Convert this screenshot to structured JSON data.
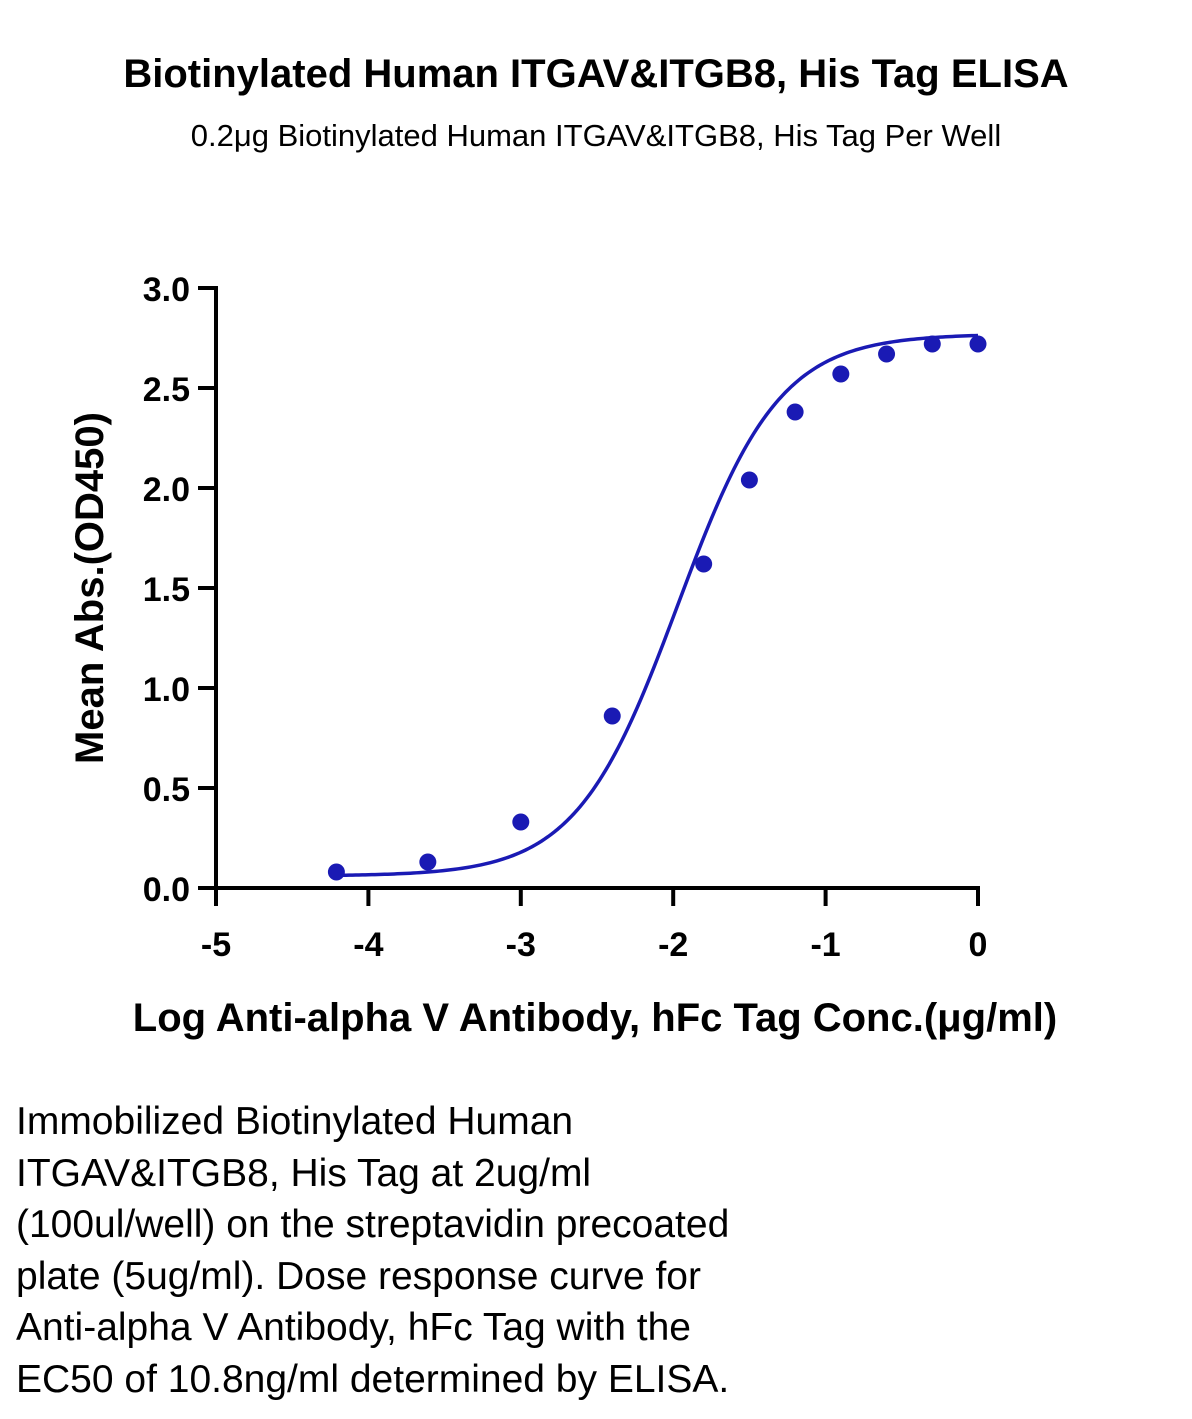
{
  "header": {
    "title": "Biotinylated Human ITGAV&ITGB8, His Tag ELISA",
    "subtitle": "0.2μg Biotinylated Human ITGAV&ITGB8, His Tag Per Well"
  },
  "chart_data": {
    "type": "scatter",
    "title": "Biotinylated Human ITGAV&ITGB8, His Tag ELISA",
    "subtitle": "0.2μg Biotinylated Human ITGAV&ITGB8, His Tag Per Well",
    "xlabel": "Log Anti-alpha V Antibody, hFc Tag Conc.(μg/ml)",
    "ylabel": "Mean Abs.(OD450)",
    "xlim": [
      -5,
      0
    ],
    "ylim": [
      0,
      3.0
    ],
    "x_ticks": [
      "-5",
      "-4",
      "-3",
      "-2",
      "-1",
      "0"
    ],
    "y_ticks": [
      "0.0",
      "0.5",
      "1.0",
      "1.5",
      "2.0",
      "2.5",
      "3.0"
    ],
    "grid": false,
    "legend": "none",
    "color": "#1a1ab4",
    "series": [
      {
        "x": [
          -4.21,
          -3.61,
          -3.0,
          -2.4,
          -1.8,
          -1.5,
          -1.2,
          -0.9,
          -0.6,
          -0.3,
          0.0
        ],
        "y": [
          0.08,
          0.13,
          0.33,
          0.86,
          1.62,
          2.04,
          2.38,
          2.57,
          2.67,
          2.72,
          2.72
        ]
      }
    ],
    "fit": {
      "type": "4PL sigmoid",
      "bottom": 0.06,
      "top": 2.77,
      "log_ec50": -1.97,
      "hill": 1.3
    }
  },
  "caption": {
    "lines": [
      "Immobilized Biotinylated Human",
      "ITGAV&ITGB8, His Tag at 2ug/ml",
      "(100ul/well) on the streptavidin precoated",
      "plate (5ug/ml). Dose response curve for",
      "Anti-alpha V Antibody, hFc Tag with the",
      "EC50 of 10.8ng/ml determined by ELISA."
    ]
  }
}
